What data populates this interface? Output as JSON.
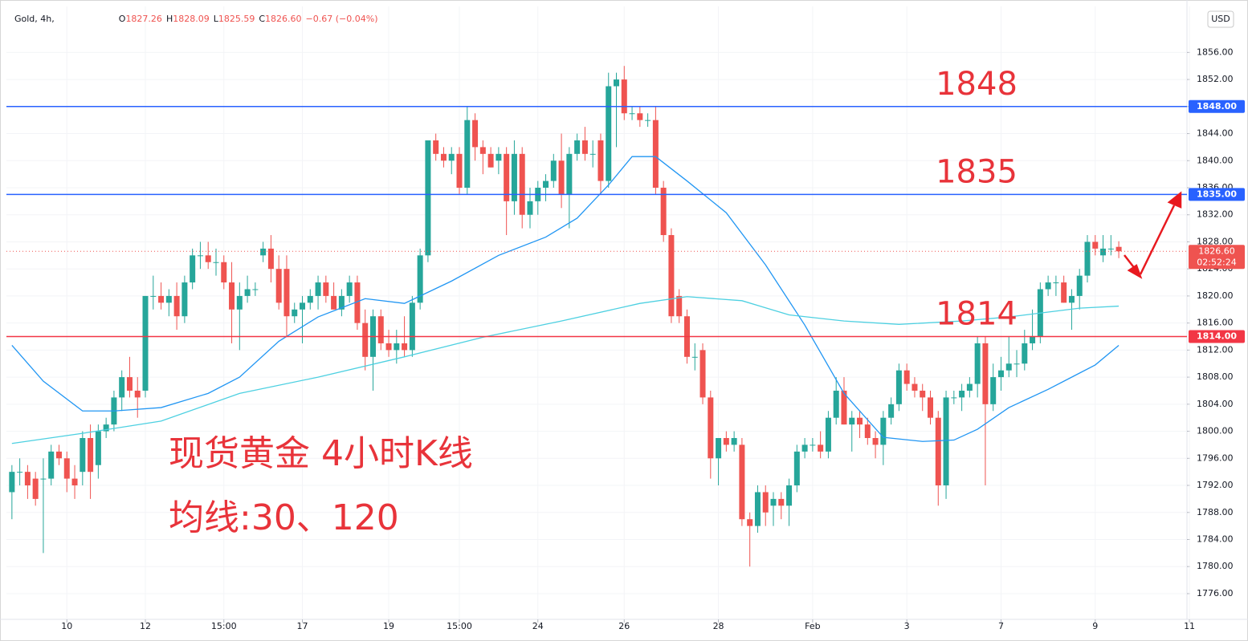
{
  "header": {
    "symbol": "Gold, 4h,",
    "ohlc_labels": [
      "O",
      "H",
      "L",
      "C"
    ],
    "ohlc_values": [
      "1827.26",
      "1828.09",
      "1825.59",
      "1826.60"
    ],
    "change": "−0.67 (−0.04%)"
  },
  "currency": "USD",
  "chart_data": {
    "type": "candlestick",
    "title": "现货黄金 4小时K线",
    "subtitle": "均线:30、120",
    "up_color": "#26a69a",
    "down_color": "#ef5350",
    "x": [
      0,
      1,
      2,
      3,
      4,
      5,
      6,
      7,
      8,
      9,
      10,
      11,
      12,
      13,
      14,
      15,
      16,
      17,
      18,
      19,
      20,
      21,
      22,
      23,
      24,
      25,
      26,
      27,
      28,
      29,
      30,
      31,
      32,
      33,
      34,
      35,
      36,
      37,
      38,
      39,
      40,
      41,
      42,
      43,
      44,
      45,
      46,
      47,
      48,
      49,
      50,
      51,
      52,
      53,
      54,
      55,
      56,
      57,
      58,
      59,
      60,
      61,
      62,
      63,
      64,
      65,
      66,
      67,
      68,
      69,
      70,
      71,
      72,
      73,
      74,
      75,
      76,
      77,
      78,
      79,
      80,
      81,
      82,
      83,
      84,
      85,
      86,
      87,
      88,
      89,
      90,
      91,
      92,
      93,
      94,
      95,
      96,
      97,
      98,
      99,
      100,
      101,
      102,
      103,
      104,
      105,
      106,
      107,
      108,
      109,
      110,
      111,
      112,
      113,
      114,
      115,
      116,
      117,
      118,
      119,
      120,
      121,
      122,
      123,
      124,
      125,
      126,
      127,
      128,
      129,
      130,
      131,
      132,
      133,
      134,
      135,
      136,
      137,
      138,
      139,
      140,
      141
    ],
    "open": [
      1791,
      1794,
      1794,
      1793,
      1793,
      1793,
      1797,
      1796,
      1793,
      1794,
      1799,
      1795,
      1800,
      1801,
      1805,
      1808,
      1806,
      1806,
      1820,
      1820,
      1819,
      1820,
      1817,
      1822,
      1826,
      1826,
      1825,
      1825,
      1822,
      1818,
      1820,
      1821,
      1826,
      1827,
      1824,
      1824,
      1817,
      1818,
      1819,
      1820,
      1822,
      1820,
      1818,
      1820,
      1822,
      1816,
      1811,
      1817,
      1813,
      1812,
      1813,
      1812,
      1819,
      1826,
      1843,
      1841,
      1840,
      1841,
      1836,
      1846,
      1842,
      1841,
      1840,
      1841,
      1834,
      1841,
      1832,
      1834,
      1836,
      1837,
      1840,
      1835,
      1841,
      1843,
      1841,
      1843,
      1837,
      1851,
      1852,
      1847,
      1847,
      1846,
      1846,
      1836,
      1829,
      1820,
      1817,
      1811,
      1812,
      1805,
      1796,
      1799,
      1798,
      1798,
      1787,
      1786,
      1791,
      1789,
      1790,
      1789,
      1792,
      1797,
      1798,
      1798,
      1797,
      1802,
      1806,
      1801,
      1802,
      1801,
      1799,
      1798,
      1802,
      1804,
      1809,
      1807,
      1806,
      1805,
      1802,
      1792,
      1805,
      1805,
      1806,
      1807,
      1813,
      1804,
      1808,
      1809,
      1810,
      1810,
      1813,
      1814,
      1821,
      1822,
      1822,
      1819,
      1820,
      1823,
      1828,
      1826,
      1827,
      1827.26
    ],
    "high": [
      1795,
      1796,
      1795,
      1794,
      1796,
      1798,
      1798,
      1797,
      1795,
      1800,
      1801,
      1801,
      1802,
      1806,
      1809,
      1811,
      1808,
      1820,
      1823,
      1822,
      1821,
      1822,
      1823,
      1827,
      1828,
      1828,
      1827,
      1826,
      1825,
      1822,
      1823,
      1822,
      1828,
      1829,
      1826,
      1826,
      1819,
      1820,
      1821,
      1823,
      1823,
      1822,
      1821,
      1823,
      1823,
      1818,
      1818,
      1818,
      1815,
      1815,
      1817,
      1820,
      1827,
      1843,
      1844,
      1842,
      1842,
      1842,
      1848,
      1847,
      1843,
      1842,
      1842,
      1842,
      1843,
      1842,
      1836,
      1837,
      1838,
      1841,
      1844,
      1842,
      1844,
      1845,
      1843,
      1844,
      1853,
      1853,
      1854,
      1848,
      1848,
      1847,
      1848,
      1837,
      1830,
      1821,
      1818,
      1813,
      1813,
      1806,
      1799,
      1800,
      1800,
      1799,
      1788,
      1792,
      1792,
      1791,
      1791,
      1793,
      1798,
      1799,
      1799,
      1800,
      1803,
      1808,
      1808,
      1803,
      1803,
      1802,
      1800,
      1803,
      1805,
      1810,
      1810,
      1808,
      1807,
      1806,
      1803,
      1806,
      1806,
      1807,
      1808,
      1814,
      1814,
      1810,
      1811,
      1814,
      1812,
      1815,
      1818,
      1822,
      1823,
      1823,
      1823,
      1821,
      1824,
      1829,
      1829,
      1829,
      1829,
      1828.09
    ],
    "low": [
      1787,
      1792,
      1790,
      1789,
      1782,
      1792,
      1795,
      1791,
      1790,
      1792,
      1790,
      1793,
      1799,
      1800,
      1803,
      1805,
      1802,
      1805,
      1818,
      1818,
      1817,
      1815,
      1816,
      1821,
      1824,
      1824,
      1823,
      1821,
      1813,
      1812,
      1819,
      1820,
      1825,
      1822,
      1818,
      1814,
      1816,
      1813,
      1818,
      1818,
      1819,
      1818,
      1817,
      1819,
      1815,
      1809,
      1806,
      1812,
      1811,
      1810,
      1811,
      1811,
      1818,
      1825,
      1840,
      1839,
      1838,
      1835,
      1835,
      1840,
      1838,
      1839,
      1838,
      1829,
      1832,
      1830,
      1830,
      1832,
      1834,
      1836,
      1833,
      1830,
      1840,
      1840,
      1839,
      1835,
      1836,
      1842,
      1846,
      1846,
      1845,
      1845,
      1835,
      1828,
      1816,
      1816,
      1810,
      1809,
      1804,
      1793,
      1792,
      1797,
      1797,
      1786,
      1780,
      1785,
      1786,
      1786,
      1787,
      1786,
      1791,
      1796,
      1797,
      1796,
      1796,
      1801,
      1801,
      1797,
      1799,
      1798,
      1796,
      1795,
      1801,
      1803,
      1806,
      1805,
      1803,
      1801,
      1789,
      1790,
      1804,
      1803,
      1805,
      1805,
      1792,
      1803,
      1806,
      1808,
      1808,
      1809,
      1812,
      1813,
      1820,
      1820,
      1819,
      1815,
      1818,
      1822,
      1826,
      1825,
      1826,
      1825.59
    ],
    "close": [
      1794,
      1794,
      1792,
      1790,
      1793,
      1797,
      1796,
      1793,
      1792,
      1799,
      1794,
      1800,
      1801,
      1805,
      1808,
      1806,
      1805,
      1820,
      1820,
      1819,
      1820,
      1817,
      1822,
      1826,
      1826,
      1825,
      1825,
      1822,
      1818,
      1820,
      1821,
      1821,
      1827,
      1824,
      1819,
      1817,
      1818,
      1819,
      1820,
      1822,
      1820,
      1818,
      1820,
      1822,
      1816,
      1811,
      1817,
      1813,
      1812,
      1813,
      1812,
      1819,
      1826,
      1843,
      1841,
      1840,
      1841,
      1836,
      1846,
      1842,
      1841,
      1839,
      1841,
      1834,
      1841,
      1832,
      1834,
      1836,
      1837,
      1840,
      1835,
      1841,
      1843,
      1841,
      1841,
      1837,
      1851,
      1852,
      1847,
      1847,
      1846,
      1846,
      1836,
      1829,
      1817,
      1817,
      1811,
      1811,
      1805,
      1796,
      1799,
      1798,
      1799,
      1787,
      1786,
      1791,
      1788,
      1790,
      1789,
      1792,
      1797,
      1798,
      1798,
      1797,
      1802,
      1806,
      1801,
      1802,
      1801,
      1799,
      1798,
      1802,
      1804,
      1809,
      1807,
      1806,
      1805,
      1802,
      1792,
      1805,
      1805,
      1806,
      1807,
      1813,
      1804,
      1808,
      1809,
      1810,
      1810,
      1813,
      1814,
      1821,
      1822,
      1822,
      1819,
      1820,
      1823,
      1828,
      1827,
      1827,
      1827,
      1826.6
    ],
    "moving_averages": [
      {
        "color": "#2196f3",
        "x": [
          0,
          4,
          9,
          13,
          19,
          25,
          29,
          34,
          39,
          45,
          50,
          56,
          62,
          68,
          72,
          76,
          79,
          82,
          86,
          91,
          96,
          101,
          106,
          111,
          116,
          120,
          123,
          127,
          132,
          135,
          138,
          141
        ],
        "values": [
          1812.7,
          1807.4,
          1803,
          1803,
          1803.5,
          1805.6,
          1808,
          1813.3,
          1816.9,
          1819.6,
          1818.9,
          1822.2,
          1826,
          1828.7,
          1831.5,
          1836.4,
          1840.6,
          1840.6,
          1837,
          1832.3,
          1824.6,
          1815.7,
          1805.6,
          1799.1,
          1798.5,
          1798.7,
          1800.3,
          1803.5,
          1806.2,
          1808,
          1809.8,
          1812.7
        ]
      },
      {
        "color": "#4dd0e1",
        "x": [
          0,
          9,
          19,
          29,
          39,
          50,
          60,
          70,
          80,
          86,
          93,
          99,
          106,
          113,
          121,
          127,
          136,
          141
        ],
        "values": [
          1798.2,
          1799.7,
          1801.5,
          1805.6,
          1808,
          1811,
          1813.9,
          1816.3,
          1818.9,
          1819.9,
          1819.3,
          1817.2,
          1816.3,
          1815.8,
          1816.3,
          1816.9,
          1818.2,
          1818.5
        ]
      }
    ],
    "hlines": [
      {
        "value": 1848,
        "label": "1848.00",
        "color": "#2962ff",
        "annotation": "1848"
      },
      {
        "value": 1835,
        "label": "1835.00",
        "color": "#2962ff",
        "annotation": "1835"
      },
      {
        "value": 1814,
        "label": "1814.00",
        "color": "#f23645",
        "annotation": "1814"
      }
    ],
    "last_price": {
      "value": 1826.6,
      "label": "1826.60",
      "countdown": "02:52:24",
      "color": "#ef5350"
    },
    "xlim": [
      -0.7,
      150.3
    ],
    "xticks": [
      {
        "value": 7,
        "label": "10"
      },
      {
        "value": 17,
        "label": "12"
      },
      {
        "value": 27,
        "label": "15:00"
      },
      {
        "value": 37,
        "label": "17"
      },
      {
        "value": 48,
        "label": "19"
      },
      {
        "value": 57,
        "label": "15:00"
      },
      {
        "value": 67,
        "label": "24"
      },
      {
        "value": 78,
        "label": "26"
      },
      {
        "value": 90,
        "label": "28"
      },
      {
        "value": 102,
        "label": "Feb"
      },
      {
        "value": 114,
        "label": "3"
      },
      {
        "value": 126,
        "label": "7"
      },
      {
        "value": 138,
        "label": "9"
      },
      {
        "value": 150,
        "label": "11"
      }
    ],
    "ylim": [
      1772.2,
      1862.8
    ],
    "yticks": [
      {
        "value": 1776,
        "label": "1776.00"
      },
      {
        "value": 1780,
        "label": "1780.00"
      },
      {
        "value": 1784,
        "label": "1784.00"
      },
      {
        "value": 1788,
        "label": "1788.00"
      },
      {
        "value": 1792,
        "label": "1792.00"
      },
      {
        "value": 1796,
        "label": "1796.00"
      },
      {
        "value": 1800,
        "label": "1800.00"
      },
      {
        "value": 1804,
        "label": "1804.00"
      },
      {
        "value": 1808,
        "label": "1808.00"
      },
      {
        "value": 1812,
        "label": "1812.00"
      },
      {
        "value": 1816,
        "label": "1816.00"
      },
      {
        "value": 1820,
        "label": "1820.00"
      },
      {
        "value": 1824,
        "label": "1824.00"
      },
      {
        "value": 1828,
        "label": "1828.00"
      },
      {
        "value": 1832,
        "label": "1832.00"
      },
      {
        "value": 1836,
        "label": "1836.00"
      },
      {
        "value": 1840,
        "label": "1840.00"
      },
      {
        "value": 1844,
        "label": "1844.00"
      },
      {
        "value": 1848,
        "label": "1848.00"
      },
      {
        "value": 1852,
        "label": "1852.00"
      },
      {
        "value": 1856,
        "label": "1856.00"
      }
    ],
    "grid": true
  }
}
